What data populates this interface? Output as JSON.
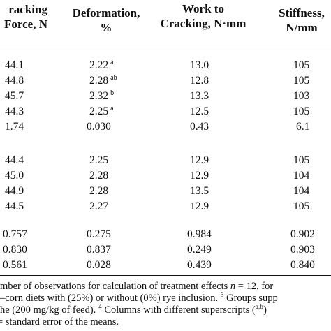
{
  "table": {
    "headers": [
      {
        "lines": [
          "racking",
          "Force, N"
        ]
      },
      {
        "lines": [
          "Deformation,",
          "%"
        ]
      },
      {
        "lines": [
          "Work to",
          "Cracking, N·mm"
        ]
      },
      {
        "lines": [
          "Stiffness,",
          "N/mm"
        ]
      }
    ],
    "rows": [
      {
        "force": "44.1",
        "deformation": "2.22",
        "deformation_sup": "a",
        "work": "13.0",
        "stiffness": "105"
      },
      {
        "force": "44.8",
        "deformation": "2.28",
        "deformation_sup": "ab",
        "work": "12.8",
        "stiffness": "105"
      },
      {
        "force": "45.7",
        "deformation": "2.32",
        "deformation_sup": "b",
        "work": "13.3",
        "stiffness": "103"
      },
      {
        "force": "44.3",
        "deformation": "2.25",
        "deformation_sup": "a",
        "work": "12.5",
        "stiffness": "105"
      },
      {
        "force": "1.74",
        "deformation": "0.030",
        "deformation_sup": "",
        "work": "0.43",
        "stiffness": "6.1"
      },
      {
        "force": "44.4",
        "deformation": "2.25",
        "deformation_sup": "",
        "work": "12.9",
        "stiffness": "105"
      },
      {
        "force": "45.0",
        "deformation": "2.28",
        "deformation_sup": "",
        "work": "12.9",
        "stiffness": "104"
      },
      {
        "force": "44.9",
        "deformation": "2.28",
        "deformation_sup": "",
        "work": "13.5",
        "stiffness": "104"
      },
      {
        "force": "44.5",
        "deformation": "2.27",
        "deformation_sup": "",
        "work": "12.9",
        "stiffness": "105"
      },
      {
        "force": "0.757",
        "deformation": "0.275",
        "deformation_sup": "",
        "work": "0.984",
        "stiffness": "0.902"
      },
      {
        "force": "0.830",
        "deformation": "0.837",
        "deformation_sup": "",
        "work": "0.249",
        "stiffness": "0.903"
      },
      {
        "force": "0.561",
        "deformation": "0.028",
        "deformation_sup": "",
        "work": "0.439",
        "stiffness": "0.840"
      }
    ]
  },
  "footnotes": {
    "line1_a": "mber of observations for calculation of treatment effects ",
    "line1_n": "n",
    "line1_b": " = 12, for",
    "line2": "–corn diets with (25%) or without (0%) rye inclusion.",
    "line2_sup": "3",
    "line2_b": "Groups supp",
    "line3_a": "he (200 mg/kg of feed).",
    "line3_sup": "4",
    "line3_b": "Columns with different superscripts (",
    "line3_sup2": "a,b",
    "line3_c": ")",
    "line4": "= standard error of the means."
  }
}
